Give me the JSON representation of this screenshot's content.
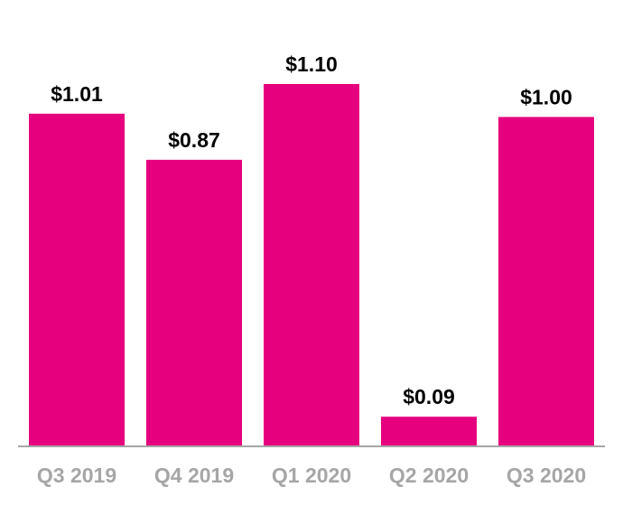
{
  "chart_data": {
    "type": "bar",
    "title": "",
    "xlabel": "",
    "ylabel": "",
    "categories": [
      "Q3 2019",
      "Q4 2019",
      "Q1 2020",
      "Q2 2020",
      "Q3 2020"
    ],
    "values": [
      1.01,
      0.87,
      1.1,
      0.09,
      1.0
    ],
    "data_labels": [
      "$1.01",
      "$0.87",
      "$1.10",
      "$0.09",
      "$1.00"
    ],
    "ylim": [
      0,
      1.1
    ],
    "grid": false,
    "legend": "none",
    "colors": {
      "bar": "#e6007e",
      "axis": "#a6a6a6",
      "tick_label": "#a6a6a6",
      "value_label": "#000000"
    }
  }
}
